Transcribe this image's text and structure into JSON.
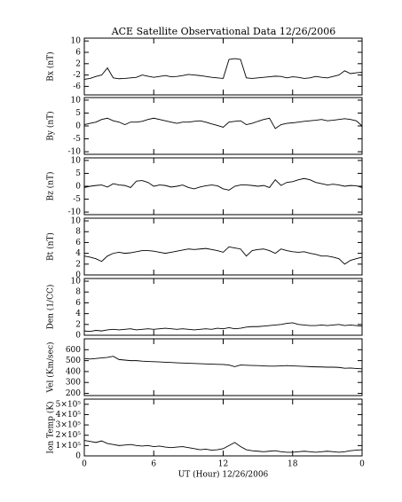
{
  "chart_data": [
    {
      "type": "line",
      "title": "ACE Satellite Observational Data   12/26/2006",
      "ylabel": "Bx (nT)",
      "color": "#000000",
      "x": [
        0,
        0.5,
        1,
        1.5,
        2,
        2.5,
        3,
        3.5,
        4,
        4.5,
        5,
        5.5,
        6,
        6.5,
        7,
        7.5,
        8,
        8.5,
        9,
        9.5,
        10,
        10.5,
        11,
        11.5,
        12,
        12.5,
        13,
        13.5,
        14,
        14.5,
        15,
        15.5,
        16,
        16.5,
        17,
        17.5,
        18,
        18.5,
        19,
        19.5,
        20,
        20.5,
        21,
        21.5,
        22,
        22.5,
        23,
        23.5,
        24
      ],
      "values": [
        -3.5,
        -3.2,
        -2.5,
        -2,
        0.5,
        -3,
        -3.3,
        -3.2,
        -3,
        -2.8,
        -2,
        -2.4,
        -2.8,
        -2.5,
        -2.2,
        -2.6,
        -2.5,
        -2.2,
        -1.8,
        -2,
        -2.2,
        -2.5,
        -2.8,
        -3,
        -3.2,
        3.5,
        3.8,
        3.5,
        -3,
        -3.2,
        -3,
        -2.8,
        -2.6,
        -2.4,
        -2.5,
        -3,
        -2.6,
        -2.8,
        -3.2,
        -3,
        -2.5,
        -2.8,
        -3,
        -2.5,
        -2,
        -0.5,
        -1.5,
        -1.2,
        -1
      ],
      "xlim": [
        0,
        24
      ],
      "xticks": [
        0,
        6,
        12,
        18,
        {
          "value": 24,
          "label": "0"
        }
      ],
      "ylim": [
        -9,
        11
      ],
      "yticks": [
        10,
        6,
        2,
        -2,
        -6
      ]
    },
    {
      "type": "line",
      "ylabel": "By (nT)",
      "color": "#000000",
      "x": [
        0,
        0.5,
        1,
        1.5,
        2,
        2.5,
        3,
        3.5,
        4,
        4.5,
        5,
        5.5,
        6,
        6.5,
        7,
        7.5,
        8,
        8.5,
        9,
        9.5,
        10,
        10.5,
        11,
        11.5,
        12,
        12.5,
        13,
        13.5,
        14,
        14.5,
        15,
        15.5,
        16,
        16.5,
        17,
        17.5,
        18,
        18.5,
        19,
        19.5,
        20,
        20.5,
        21,
        21.5,
        22,
        22.5,
        23,
        23.5,
        24
      ],
      "values": [
        0.5,
        1,
        1.5,
        2.5,
        3,
        2,
        1.5,
        0.5,
        1.5,
        1.5,
        1.8,
        2.5,
        3,
        2.5,
        2,
        1.5,
        1,
        1.5,
        1.5,
        1.8,
        2,
        1.5,
        0.8,
        0.2,
        -0.5,
        1.5,
        1.8,
        2,
        0.5,
        1,
        1.8,
        2.5,
        3,
        -1,
        0.5,
        1,
        1.2,
        1.5,
        1.8,
        2,
        2.2,
        2.5,
        2,
        2.2,
        2.5,
        2.8,
        2.5,
        2,
        0
      ],
      "xlim": [
        0,
        24
      ],
      "xticks": [
        0,
        6,
        12,
        18,
        {
          "value": 24,
          "label": "0"
        }
      ],
      "ylim": [
        -11,
        11
      ],
      "yticks": [
        10,
        5,
        0,
        -5,
        -10
      ]
    },
    {
      "type": "line",
      "ylabel": "Bz (nT)",
      "color": "#000000",
      "x": [
        0,
        0.5,
        1,
        1.5,
        2,
        2.5,
        3,
        3.5,
        4,
        4.5,
        5,
        5.5,
        6,
        6.5,
        7,
        7.5,
        8,
        8.5,
        9,
        9.5,
        10,
        10.5,
        11,
        11.5,
        12,
        12.5,
        13,
        13.5,
        14,
        14.5,
        15,
        15.5,
        16,
        16.5,
        17,
        17.5,
        18,
        18.5,
        19,
        19.5,
        20,
        20.5,
        21,
        21.5,
        22,
        22.5,
        23,
        23.5,
        24
      ],
      "values": [
        -0.5,
        0,
        0.3,
        0.5,
        -0.3,
        1,
        0.5,
        0.3,
        -0.5,
        2,
        2.2,
        1.5,
        0,
        0.5,
        0.3,
        -0.3,
        0,
        0.5,
        -0.5,
        -1,
        -0.3,
        0.2,
        0.5,
        0.2,
        -1,
        -1.5,
        0,
        0.5,
        0.5,
        0.3,
        0,
        0.3,
        -0.5,
        2.5,
        0.3,
        1.5,
        1.8,
        2.5,
        3,
        2.5,
        1.5,
        1,
        0.5,
        0.8,
        0.5,
        0,
        0.3,
        0.2,
        -0.5
      ],
      "xlim": [
        0,
        24
      ],
      "xticks": [
        0,
        6,
        12,
        18,
        {
          "value": 24,
          "label": "0"
        }
      ],
      "ylim": [
        -11,
        11
      ],
      "yticks": [
        10,
        5,
        0,
        -5,
        -10
      ]
    },
    {
      "type": "line",
      "ylabel": "Bt (nT)",
      "color": "#000000",
      "x": [
        0,
        0.5,
        1,
        1.5,
        2,
        2.5,
        3,
        3.5,
        4,
        4.5,
        5,
        5.5,
        6,
        6.5,
        7,
        7.5,
        8,
        8.5,
        9,
        9.5,
        10,
        10.5,
        11,
        11.5,
        12,
        12.5,
        13,
        13.5,
        14,
        14.5,
        15,
        15.5,
        16,
        16.5,
        17,
        17.5,
        18,
        18.5,
        19,
        19.5,
        20,
        20.5,
        21,
        21.5,
        22,
        22.5,
        23,
        23.5,
        24
      ],
      "values": [
        3.5,
        3.3,
        3,
        2.5,
        3.5,
        4,
        4.2,
        4,
        4.1,
        4.3,
        4.5,
        4.5,
        4.4,
        4.2,
        4,
        4.2,
        4.4,
        4.6,
        4.8,
        4.7,
        4.8,
        4.9,
        4.7,
        4.5,
        4.2,
        5.2,
        5,
        4.8,
        3.5,
        4.5,
        4.7,
        4.8,
        4.5,
        4,
        4.8,
        4.5,
        4.3,
        4.2,
        4.3,
        4,
        3.8,
        3.5,
        3.5,
        3.3,
        3,
        2,
        2.7,
        3,
        3.3
      ],
      "xlim": [
        0,
        24
      ],
      "xticks": [
        0,
        6,
        12,
        18,
        {
          "value": 24,
          "label": "0"
        }
      ],
      "ylim": [
        0,
        10.5
      ],
      "yticks": [
        10,
        8,
        6,
        4,
        2,
        0
      ]
    },
    {
      "type": "line",
      "ylabel": "Den (1/CC)",
      "color": "#000000",
      "x": [
        0,
        0.5,
        1,
        1.5,
        2,
        2.5,
        3,
        3.5,
        4,
        4.5,
        5,
        5.5,
        6,
        6.5,
        7,
        7.5,
        8,
        8.5,
        9,
        9.5,
        10,
        10.5,
        11,
        11.5,
        12,
        12.5,
        13,
        13.5,
        14,
        14.5,
        15,
        15.5,
        16,
        16.5,
        17,
        17.5,
        18,
        18.5,
        19,
        19.5,
        20,
        20.5,
        21,
        21.5,
        22,
        22.5,
        23,
        23.5,
        24
      ],
      "values": [
        0.8,
        0.7,
        0.9,
        0.8,
        1,
        1.1,
        1,
        1.1,
        1.2,
        1,
        1.1,
        1.2,
        1.1,
        1.2,
        1.3,
        1.2,
        1.1,
        1.2,
        1.1,
        1,
        1.1,
        1.2,
        1.1,
        1.3,
        1.2,
        1.4,
        1.2,
        1.3,
        1.5,
        1.6,
        1.6,
        1.7,
        1.8,
        1.9,
        2,
        2.2,
        2.3,
        2,
        1.9,
        1.8,
        1.8,
        1.9,
        1.8,
        1.9,
        2,
        1.8,
        1.9,
        1.8,
        1.7
      ],
      "xlim": [
        0,
        24
      ],
      "xticks": [
        0,
        6,
        12,
        18,
        {
          "value": 24,
          "label": "0"
        }
      ],
      "ylim": [
        0,
        10.5
      ],
      "yticks": [
        10,
        8,
        6,
        4,
        2,
        0
      ]
    },
    {
      "type": "line",
      "ylabel": "Vel (Km/sec)",
      "color": "#000000",
      "x": [
        0,
        0.5,
        1,
        1.5,
        2,
        2.5,
        3,
        3.5,
        4,
        4.5,
        5,
        5.5,
        6,
        6.5,
        7,
        7.5,
        8,
        8.5,
        9,
        9.5,
        10,
        10.5,
        11,
        11.5,
        12,
        12.5,
        13,
        13.5,
        14,
        14.5,
        15,
        15.5,
        16,
        16.5,
        17,
        17.5,
        18,
        18.5,
        19,
        19.5,
        20,
        20.5,
        21,
        21.5,
        22,
        22.5,
        23,
        23.5,
        24
      ],
      "values": [
        520,
        515,
        520,
        525,
        530,
        540,
        510,
        505,
        500,
        500,
        495,
        492,
        490,
        488,
        485,
        483,
        480,
        478,
        476,
        474,
        472,
        470,
        468,
        466,
        465,
        460,
        445,
        460,
        458,
        456,
        455,
        452,
        450,
        450,
        452,
        455,
        452,
        450,
        448,
        445,
        443,
        442,
        440,
        440,
        438,
        430,
        432,
        428,
        425
      ],
      "xlim": [
        0,
        24
      ],
      "xticks": [
        0,
        6,
        12,
        18,
        {
          "value": 24,
          "label": "0"
        }
      ],
      "ylim": [
        180,
        700
      ],
      "yticks": [
        600,
        500,
        400,
        300,
        200
      ]
    },
    {
      "type": "line",
      "ylabel": "Ion Temp (K)",
      "xlabel": "UT (Hour)   12/26/2006",
      "color": "#000000",
      "x": [
        0,
        0.5,
        1,
        1.5,
        2,
        2.5,
        3,
        3.5,
        4,
        4.5,
        5,
        5.5,
        6,
        6.5,
        7,
        7.5,
        8,
        8.5,
        9,
        9.5,
        10,
        10.5,
        11,
        11.5,
        12,
        12.5,
        13,
        13.5,
        14,
        14.5,
        15,
        15.5,
        16,
        16.5,
        17,
        17.5,
        18,
        18.5,
        19,
        19.5,
        20,
        20.5,
        21,
        21.5,
        22,
        22.5,
        23,
        23.5,
        24
      ],
      "values": [
        150000,
        140000,
        130000,
        145000,
        120000,
        110000,
        100000,
        105000,
        110000,
        100000,
        95000,
        100000,
        90000,
        95000,
        85000,
        80000,
        85000,
        90000,
        80000,
        70000,
        60000,
        65000,
        55000,
        60000,
        70000,
        100000,
        130000,
        90000,
        60000,
        50000,
        45000,
        40000,
        45000,
        50000,
        40000,
        35000,
        35000,
        40000,
        45000,
        40000,
        35000,
        40000,
        45000,
        40000,
        35000,
        40000,
        50000,
        55000,
        60000
      ],
      "xlim": [
        0,
        24
      ],
      "xticks": [
        0,
        6,
        12,
        18,
        {
          "value": 24,
          "label": "0"
        }
      ],
      "ylim": [
        0,
        550000
      ],
      "yticks": [
        {
          "value": 500000,
          "label": "5×10⁵"
        },
        {
          "value": 400000,
          "label": "4×10⁵"
        },
        {
          "value": 300000,
          "label": "3×10⁵"
        },
        {
          "value": 200000,
          "label": "2×10⁵"
        },
        {
          "value": 100000,
          "label": "1×10⁵"
        },
        0
      ]
    }
  ]
}
